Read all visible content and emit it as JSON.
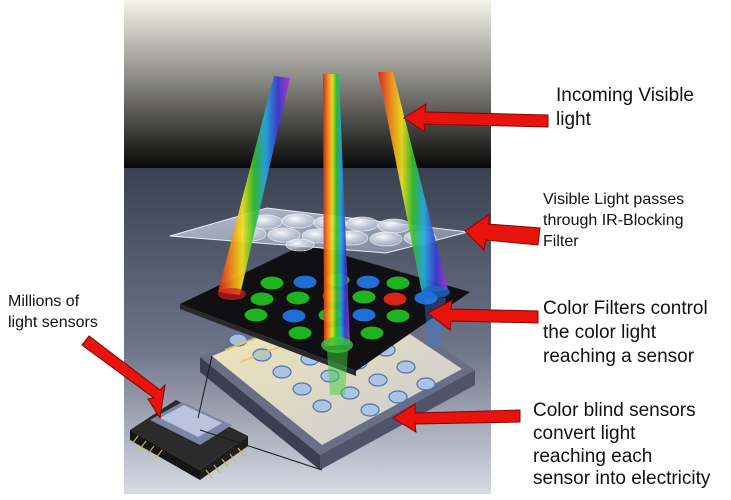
{
  "labels": {
    "incoming": [
      "Incoming Visible",
      "light"
    ],
    "ir_filter": [
      "Visible Light passes",
      "through IR-Blocking",
      "Filter"
    ],
    "color_filters": [
      "Color Filters control",
      "the color light",
      "reaching a sensor"
    ],
    "sensors": [
      "Color blind sensors",
      "convert light",
      "reaching each",
      "sensor into electricity"
    ],
    "millions": [
      "Millions of",
      "light sensors"
    ]
  },
  "colors": {
    "arrow": "#e8130d",
    "filter_green": "#1fb31f",
    "filter_blue": "#1f6fd6",
    "filter_red": "#d8241a",
    "sensor_tint": "#9fc0e8"
  },
  "icons": {
    "arrow": "red-pointer-arrow",
    "chip": "image-sensor-chip"
  }
}
